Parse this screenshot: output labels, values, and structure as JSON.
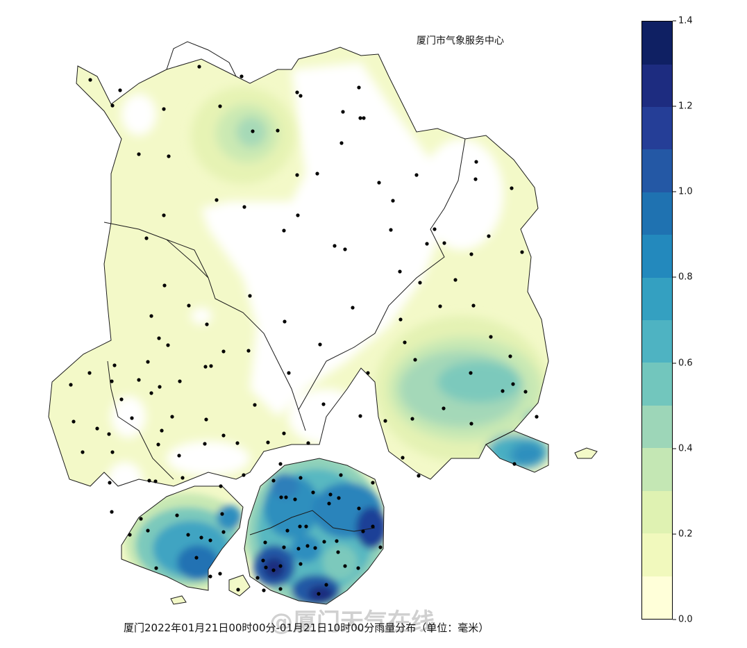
{
  "header": {
    "agency": "厦门市气象服务中心"
  },
  "footer": {
    "caption": "厦门2022年01月21日00时00分-01月21日10时00分雨量分布（单位：毫米）",
    "watermark": "@厦门天气在线"
  },
  "colorbar": {
    "min": 0.0,
    "max": 1.4,
    "tick_labels": [
      "0.0",
      "0.2",
      "0.4",
      "0.6",
      "0.8",
      "1.0",
      "1.2",
      "1.4"
    ],
    "tick_values": [
      0.0,
      0.2,
      0.4,
      0.6,
      0.8,
      1.0,
      1.2,
      1.4
    ],
    "colors": [
      "#ffffd9",
      "#f1f9bd",
      "#dff2b2",
      "#c4e7b4",
      "#9dd6b8",
      "#72c6bd",
      "#4eb3c2",
      "#34a0c1",
      "#2389bd",
      "#1f72b1",
      "#2458a5",
      "#253e97",
      "#1d2c80",
      "#0f2063"
    ]
  },
  "colors": {
    "boundary": "#1a1a1a",
    "station": "#000000",
    "background": "#ffffff"
  }
}
